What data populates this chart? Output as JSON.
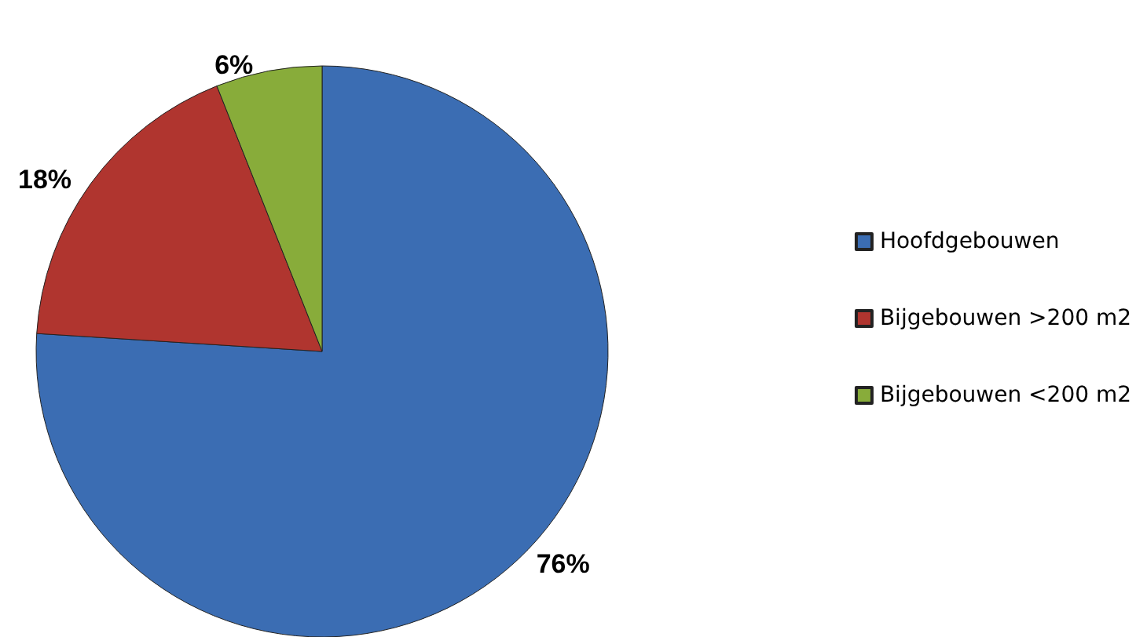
{
  "chart_data": {
    "type": "pie",
    "categories": [
      "Hoofdgebouwen",
      "Bijgebouwen >200 m2",
      "Bijgebouwen <200 m2"
    ],
    "values": [
      76,
      18,
      6
    ],
    "colors": [
      "#3b6db3",
      "#b0352f",
      "#88ac3a"
    ],
    "value_labels": [
      "76%",
      "18%",
      "6%"
    ],
    "legend": "right"
  }
}
